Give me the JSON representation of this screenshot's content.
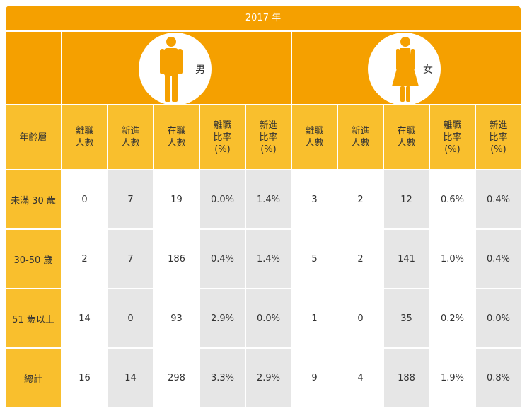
{
  "year": "2017 年",
  "genders": [
    {
      "label": "男",
      "icon": "male-figure-icon"
    },
    {
      "label": "女",
      "icon": "female-figure-icon"
    }
  ],
  "header_first": "年齡層",
  "headers": [
    "離職\n人數",
    "新進\n人數",
    "在職\n人數",
    "離職\n比率\n(%)",
    "新進\n比率\n(%)"
  ],
  "rows": [
    {
      "label": "未滿 30 歲",
      "male": [
        "0",
        "7",
        "19",
        "0.0%",
        "1.4%"
      ],
      "female": [
        "3",
        "2",
        "12",
        "0.6%",
        "0.4%"
      ]
    },
    {
      "label": "30-50 歲",
      "male": [
        "2",
        "7",
        "186",
        "0.4%",
        "1.4%"
      ],
      "female": [
        "5",
        "2",
        "141",
        "1.0%",
        "0.4%"
      ]
    },
    {
      "label": "51 歲以上",
      "male": [
        "14",
        "0",
        "93",
        "2.9%",
        "0.0%"
      ],
      "female": [
        "1",
        "0",
        "35",
        "0.2%",
        "0.0%"
      ]
    },
    {
      "label": "總計",
      "male": [
        "16",
        "14",
        "298",
        "3.3%",
        "2.9%"
      ],
      "female": [
        "9",
        "4",
        "188",
        "1.9%",
        "0.8%"
      ]
    }
  ],
  "colors": {
    "header_orange": "#f5a000",
    "label_yellow": "#f9bf2d",
    "shade_grey": "#e6e6e6"
  }
}
